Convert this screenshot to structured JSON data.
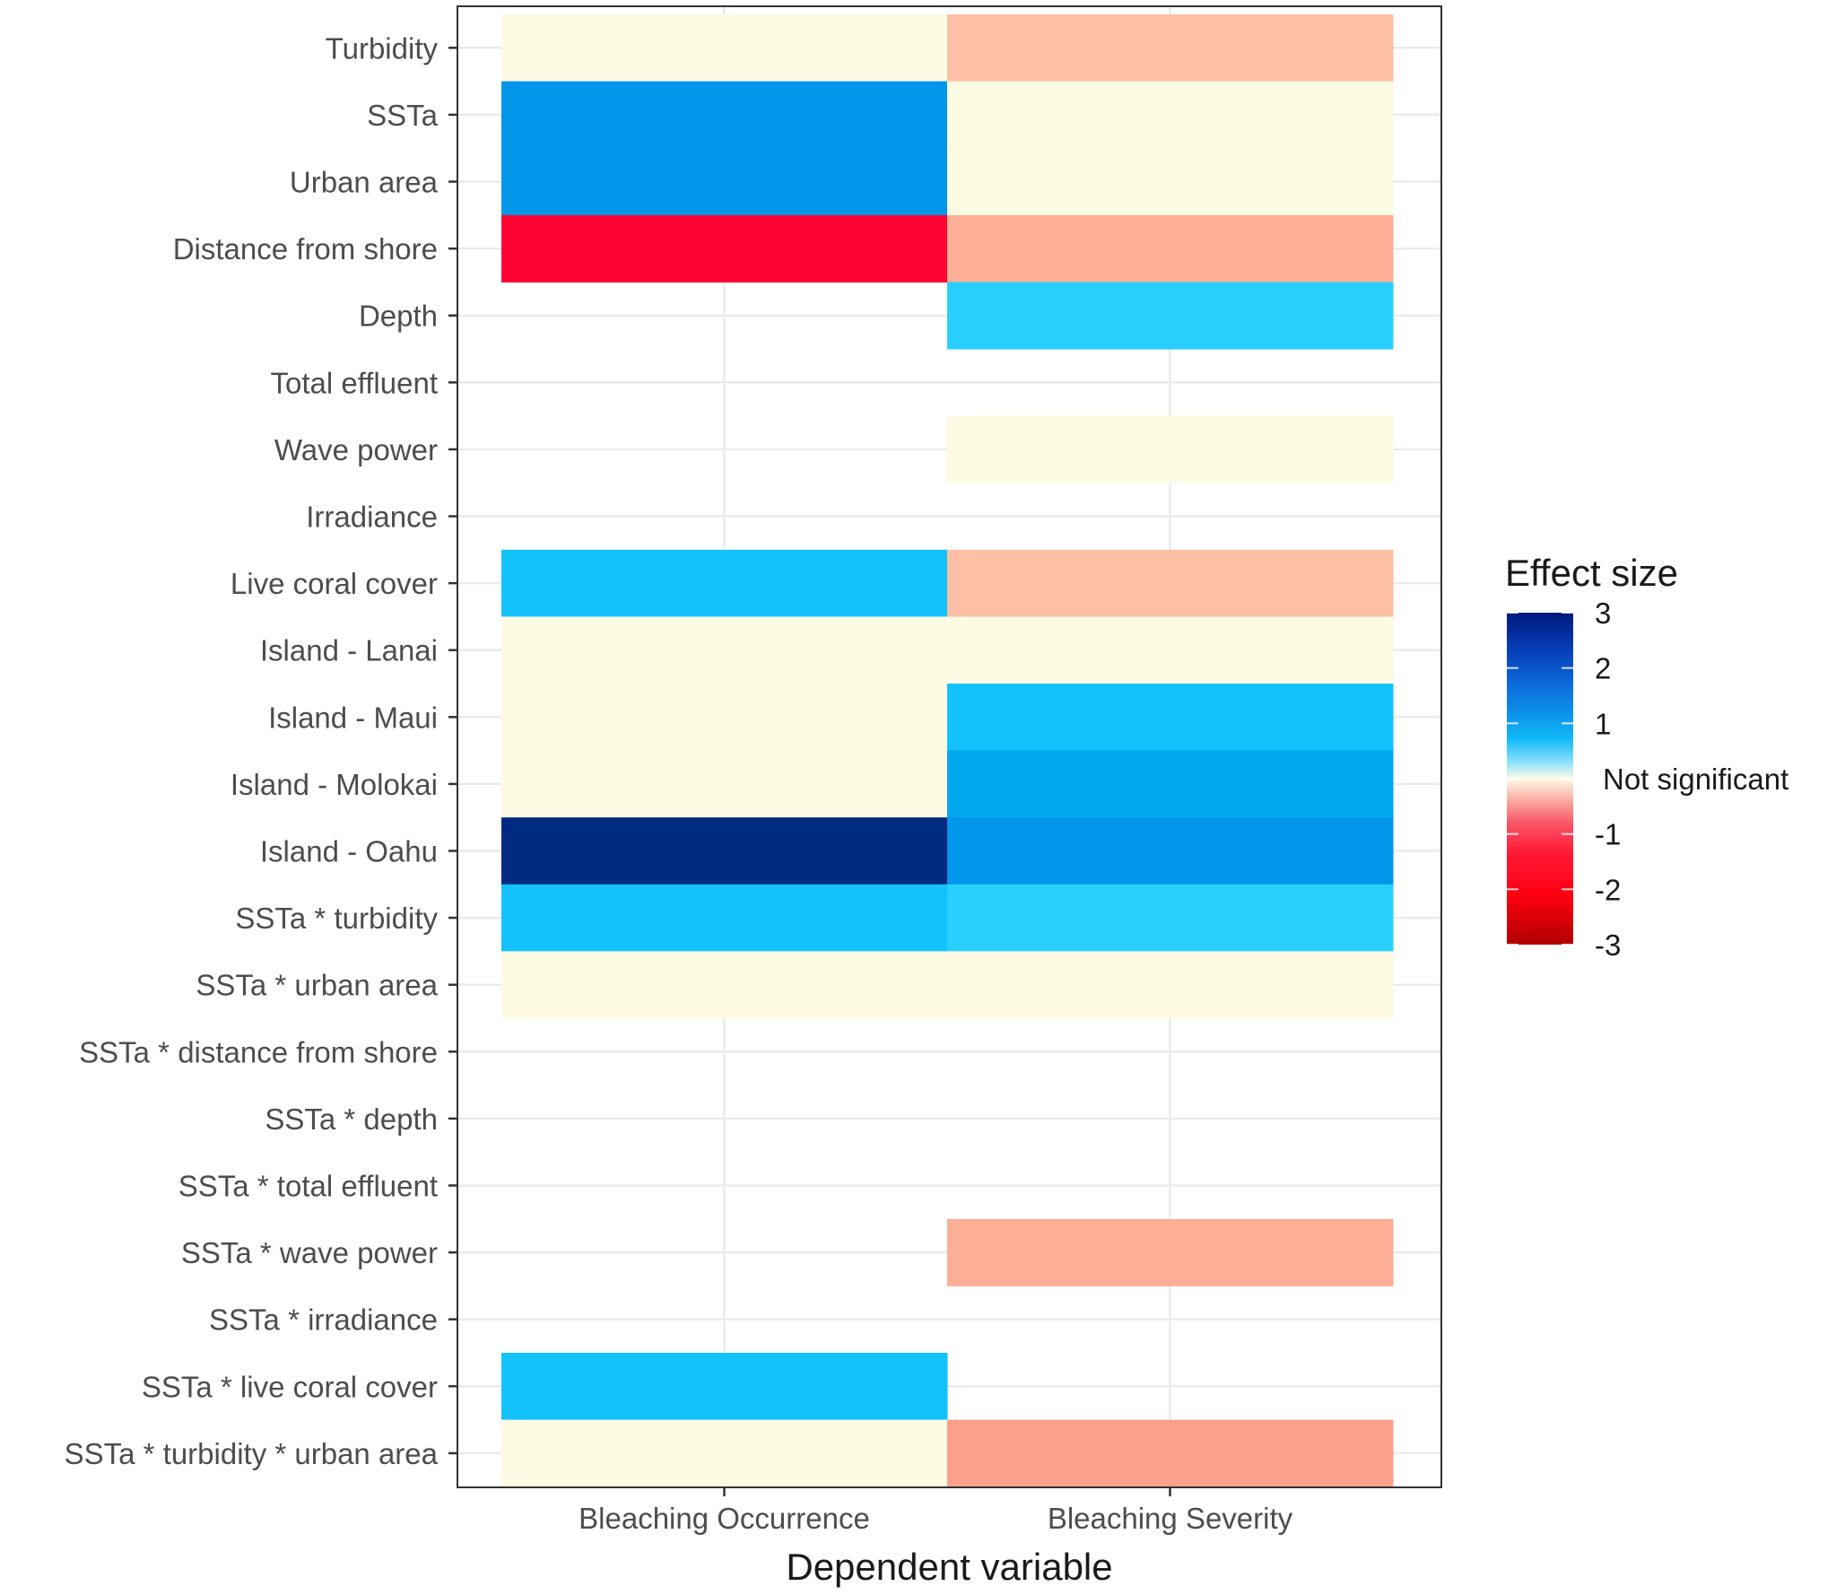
{
  "chart_data": {
    "type": "heatmap",
    "xlabel": "Dependent variable",
    "ylabel": "",
    "categories_x": [
      "Bleaching Occurrence",
      "Bleaching Severity"
    ],
    "categories_y": [
      "Turbidity",
      "SSTa",
      "Urban area",
      "Distance from shore",
      "Depth",
      "Total effluent",
      "Wave power",
      "Irradiance",
      "Live coral cover",
      "Island - Lanai",
      "Island - Maui",
      "Island - Molokai",
      "Island - Oahu",
      "SSTa * turbidity",
      "SSTa * urban area",
      "SSTa * distance from shore",
      "SSTa * depth",
      "SSTa * total effluent",
      "SSTa * wave power",
      "SSTa * irradiance",
      "SSTa * live coral cover",
      "SSTa * turbidity * urban area"
    ],
    "values": [
      [
        0,
        -0.4
      ],
      [
        1.6,
        0
      ],
      [
        1.7,
        0
      ],
      [
        -2.3,
        -0.5
      ],
      [
        null,
        0.7
      ],
      [
        null,
        null
      ],
      [
        null,
        0
      ],
      [
        null,
        null
      ],
      [
        0.95,
        -0.2
      ],
      [
        0,
        0
      ],
      [
        0,
        1.05
      ],
      [
        0,
        1.45
      ],
      [
        2.9,
        1.55
      ],
      [
        1.05,
        0.6
      ],
      [
        0,
        0
      ],
      [
        null,
        null
      ],
      [
        null,
        null
      ],
      [
        null,
        null
      ],
      [
        null,
        -0.6
      ],
      [
        null,
        null
      ],
      [
        0.95,
        null
      ],
      [
        0,
        -1.1
      ]
    ],
    "value_note": "0 = Not significant (cream); blank = not in model",
    "colorbar": {
      "title": "Effect size",
      "range": [
        -3,
        3
      ],
      "tick_values": [
        3,
        2,
        1,
        0,
        -1,
        -2,
        -3
      ],
      "tick_labels": [
        "3",
        "2",
        "1",
        "Not significant",
        "-1",
        "-2",
        "-3"
      ]
    },
    "colors": {
      "not_significant": "#fdfbe3",
      "grid": "#ebebeb",
      "panel_border": "#333333",
      "positive_scale": [
        "#8fe2f5",
        "#62dcfb",
        "#29cffc",
        "#13c2fb",
        "#00a7ef",
        "#0096ea",
        "#0083e0",
        "#0057c6",
        "#003ba6",
        "#002a80"
      ],
      "negative_scale": [
        "#fde0c8",
        "#fdbfa6",
        "#fcaf96",
        "#fca08a",
        "#f98a7b",
        "#fb5151",
        "#fe1f3e",
        "#ff0333",
        "#e60000",
        "#c00000"
      ]
    }
  }
}
